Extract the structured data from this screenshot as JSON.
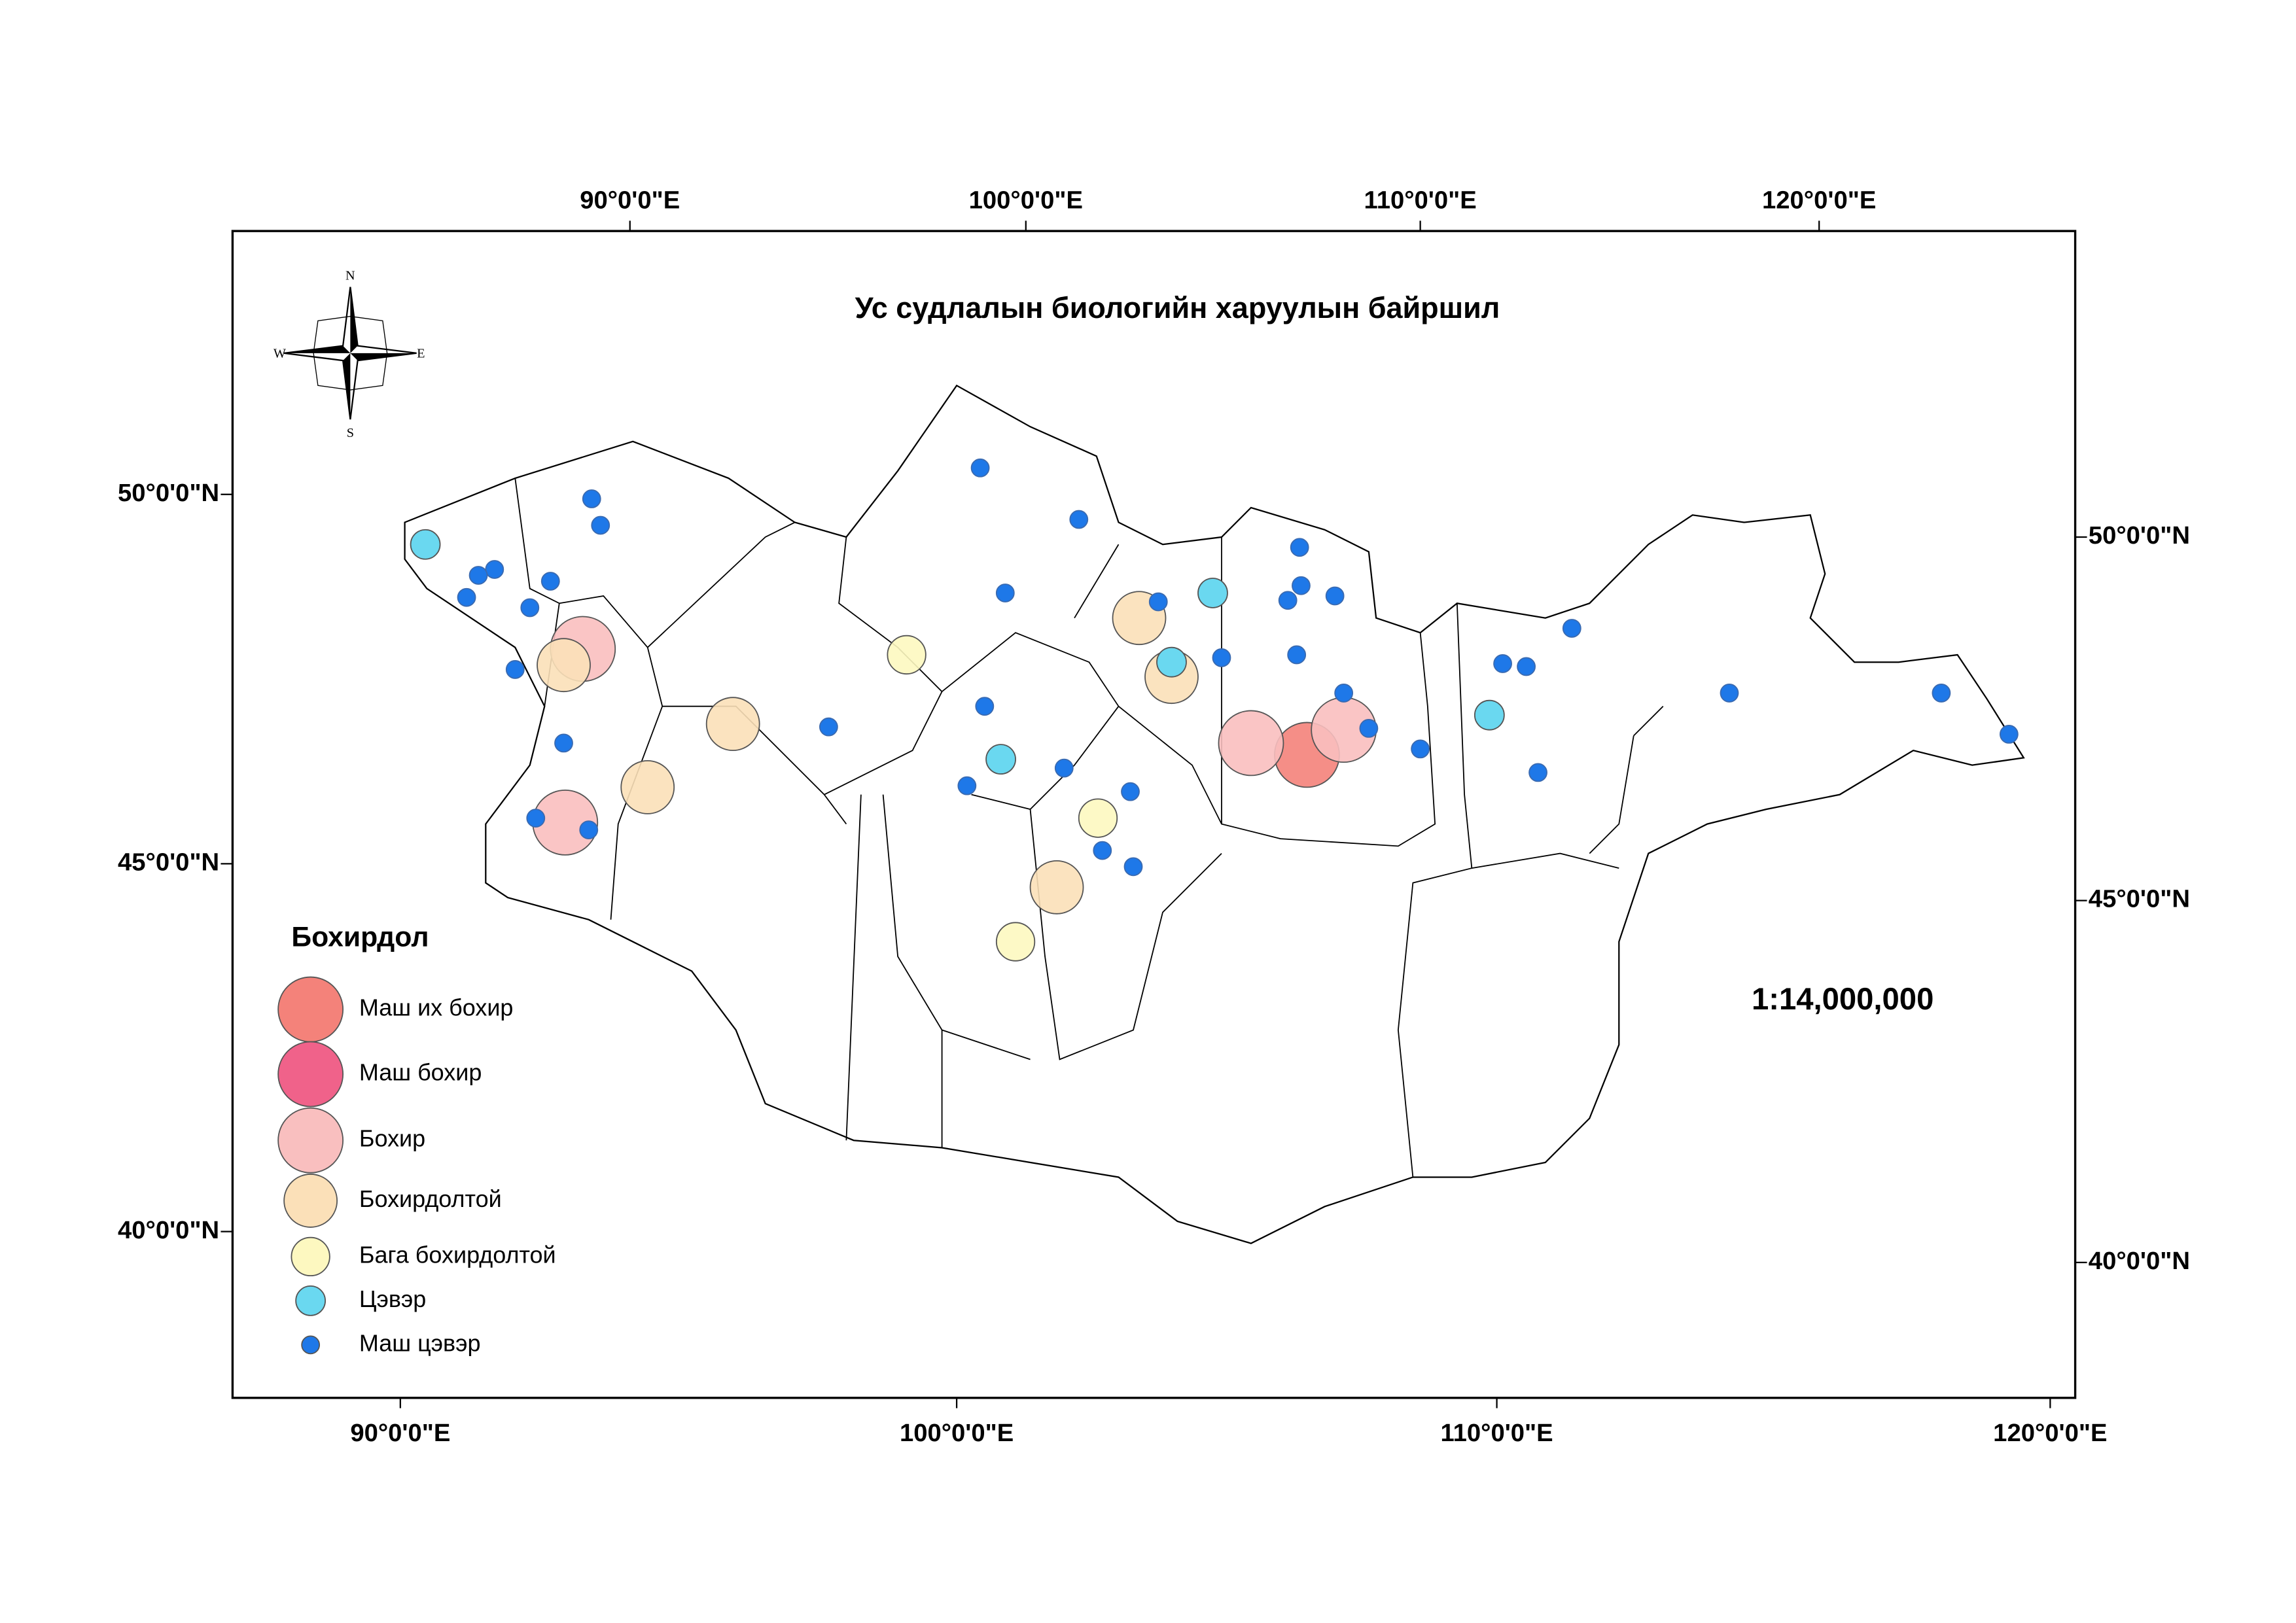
{
  "title": "Ус судлалын биологийн харуулын байршил",
  "scale": "1:14,000,000",
  "compass": {
    "north": "N",
    "west": "W",
    "east": "E",
    "south": "S"
  },
  "graticule": {
    "top": [
      "90°0'0\"E",
      "100°0'0\"E",
      "110°0'0\"E",
      "120°0'0\"E"
    ],
    "bottom": [
      "90°0'0\"E",
      "100°0'0\"E",
      "110°0'0\"E",
      "120°0'0\"E"
    ],
    "left": [
      "50°0'0\"N",
      "45°0'0\"N",
      "40°0'0\"N"
    ],
    "right": [
      "50°0'0\"N",
      "45°0'0\"N",
      "40°0'0\"N"
    ]
  },
  "legend": {
    "title": "Бохирдол",
    "items": [
      {
        "label": "Маш их бохир",
        "color": "#f4827a"
      },
      {
        "label": "Маш бохир",
        "color": "#f0628a"
      },
      {
        "label": "Бохир",
        "color": "#f9bfbf"
      },
      {
        "label": "Бохирдолтой",
        "color": "#fbe0b8"
      },
      {
        "label": "Бага бохирдолтой",
        "color": "#fdf8c0"
      },
      {
        "label": "Цэвэр",
        "color": "#6ad8f0"
      },
      {
        "label": "Маш цэвэр",
        "color": "#1e78e8"
      }
    ]
  }
}
